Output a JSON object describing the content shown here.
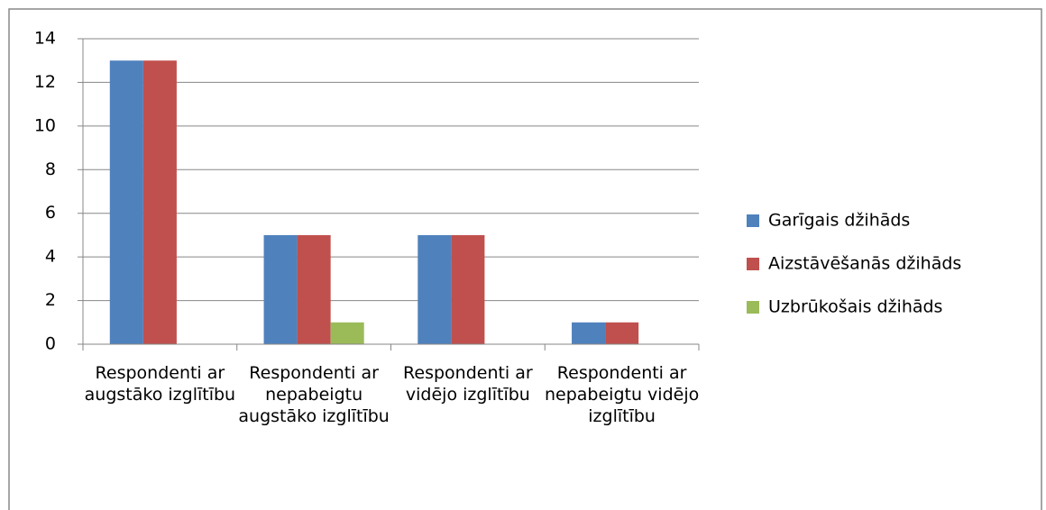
{
  "chart_data": {
    "type": "bar",
    "categories": [
      "Respondenti ar augstāko izglītību",
      "Respondenti ar nepabeigtu augstāko izglītību",
      "Respondenti ar vidējo izglītību",
      "Respondenti ar nepabeigtu vidējo izglītību"
    ],
    "series": [
      {
        "name": "Garīgais džihāds",
        "color": "#4f81bd",
        "values": [
          13,
          5,
          5,
          1
        ]
      },
      {
        "name": "Aizstāvēšanās džihāds",
        "color": "#c0504d",
        "values": [
          13,
          5,
          5,
          1
        ]
      },
      {
        "name": "Uzbrūkošais džihāds",
        "color": "#9bbb59",
        "values": [
          0,
          1,
          0,
          0
        ]
      }
    ],
    "ylim": [
      0,
      14
    ],
    "yticks": [
      0,
      2,
      4,
      6,
      8,
      10,
      12,
      14
    ],
    "grid": true,
    "legend": "right"
  }
}
